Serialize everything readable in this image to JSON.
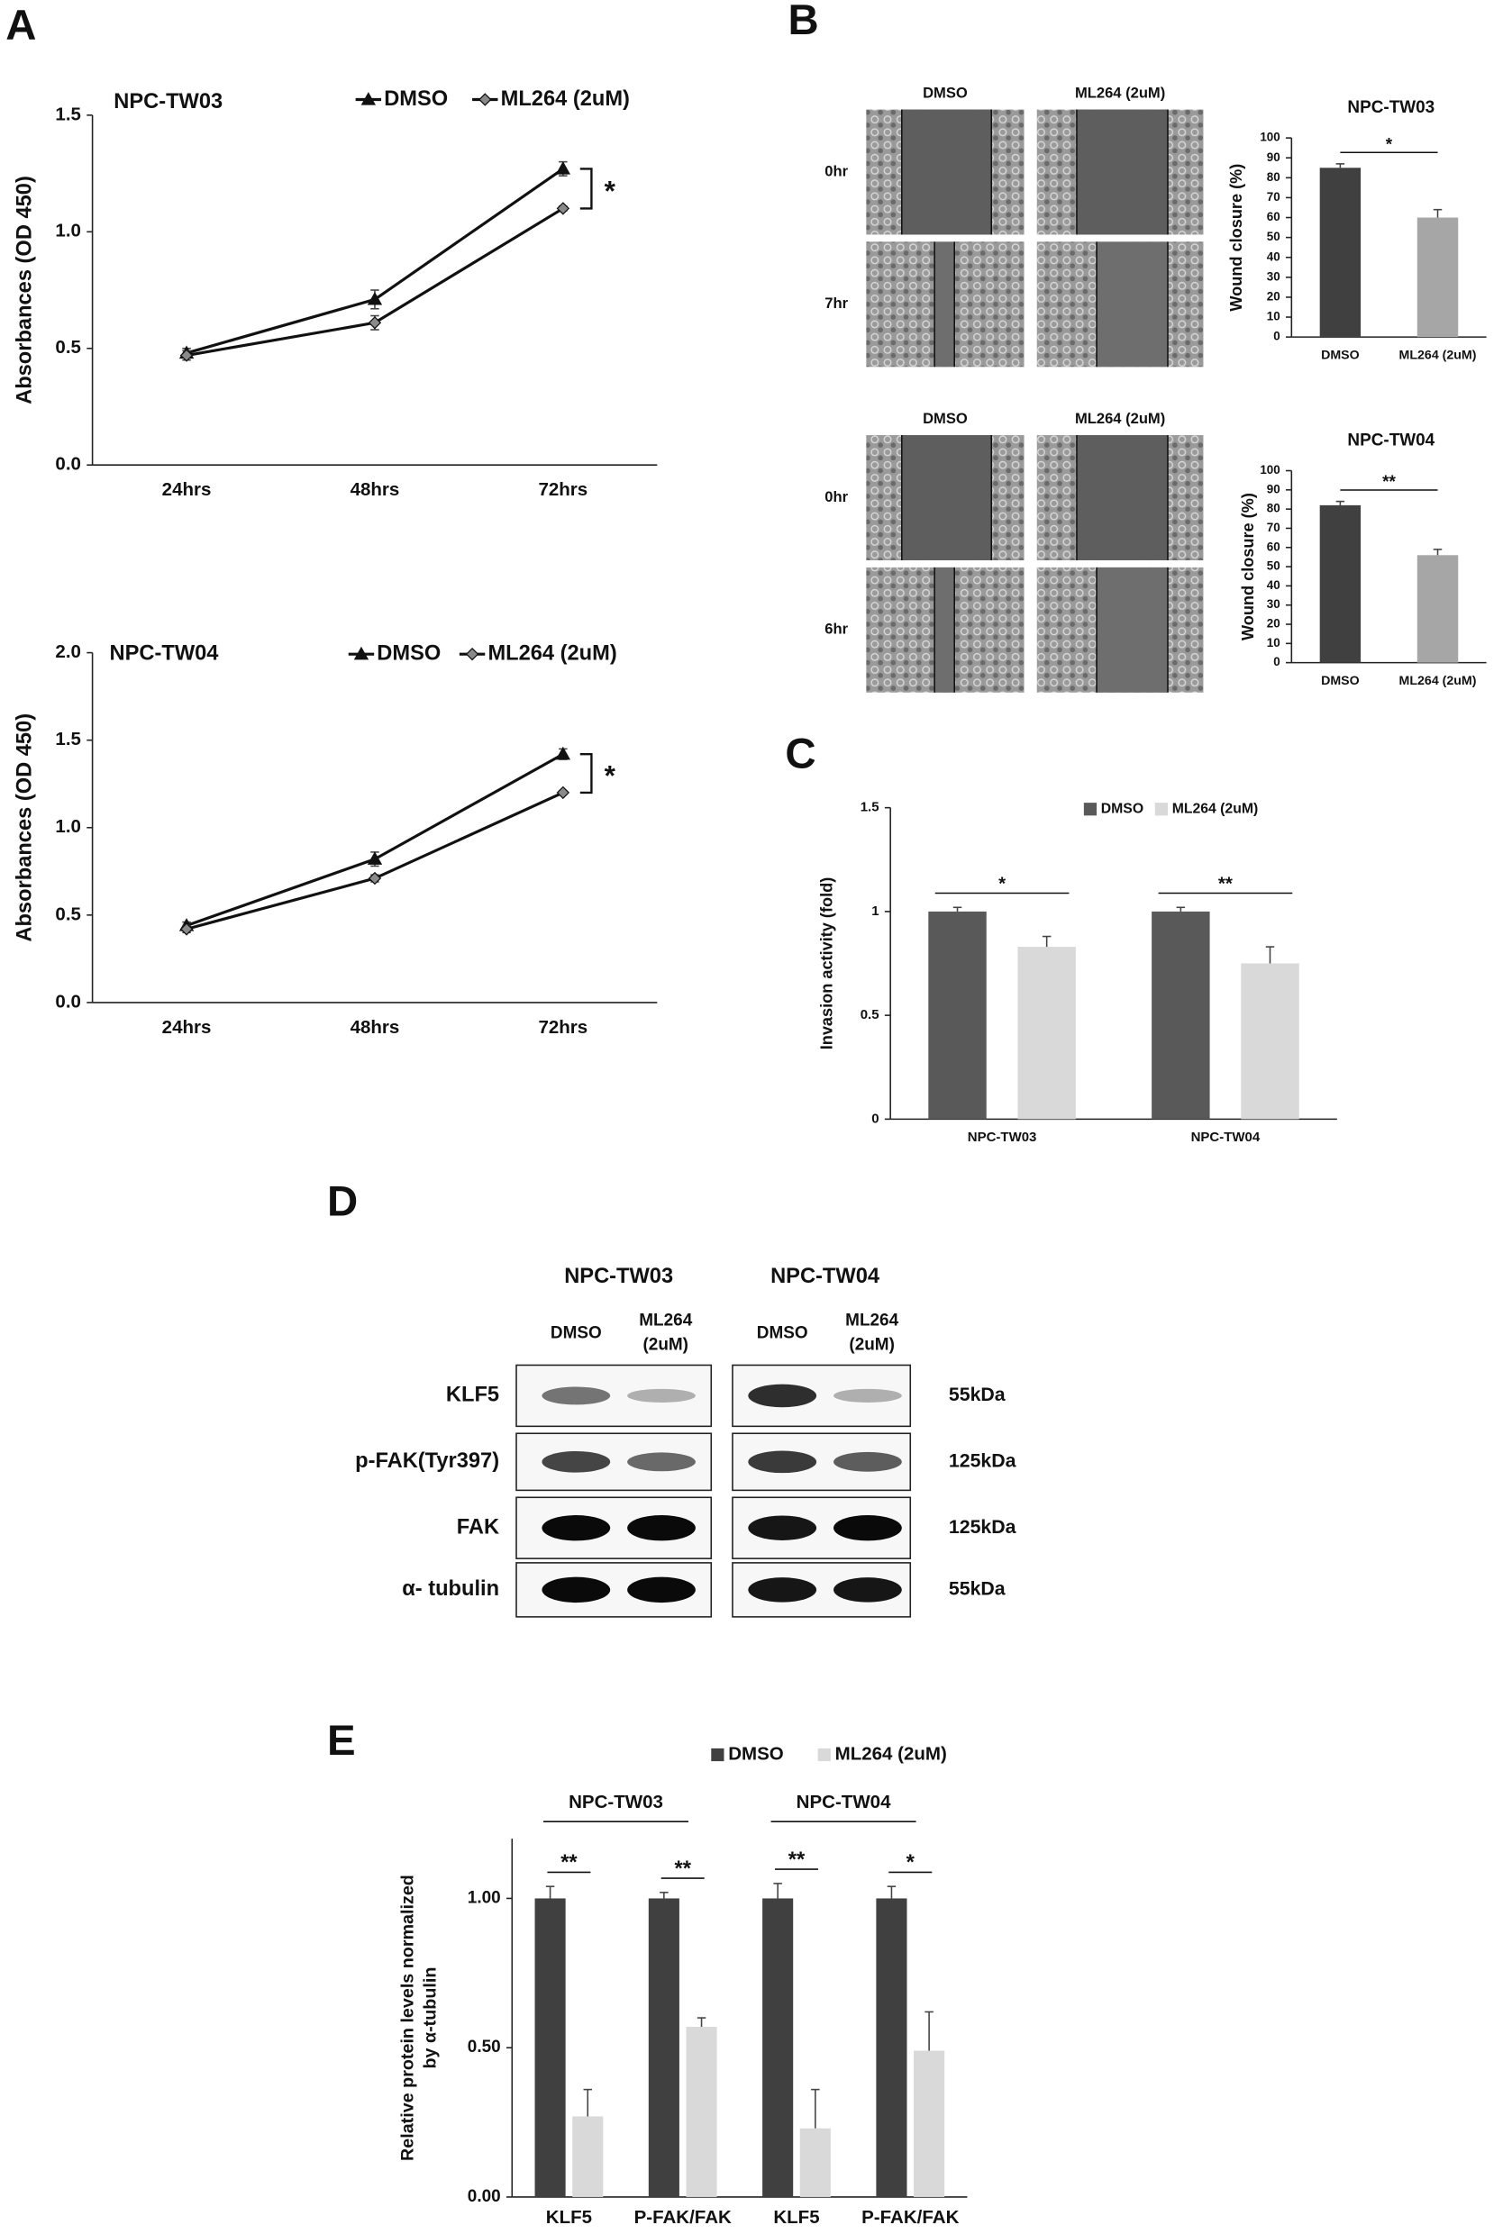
{
  "chart_data": [
    {
      "type": "line",
      "panel": "A",
      "title": "NPC-TW03",
      "y_label": "Absorbances (OD 450)",
      "categories": [
        "24hrs",
        "48hrs",
        "72hrs"
      ],
      "series": [
        {
          "name": "DMSO",
          "color": "#111111",
          "marker": "triangle",
          "marker_fill": "#111111",
          "values": [
            0.48,
            0.71,
            1.27
          ],
          "errors": [
            0.02,
            0.04,
            0.03
          ]
        },
        {
          "name": "ML264 (2uM)",
          "color": "#111111",
          "marker": "diamond",
          "marker_fill": "#8a8a8a",
          "values": [
            0.47,
            0.61,
            1.1
          ],
          "errors": [
            0.02,
            0.03,
            0.01
          ]
        }
      ],
      "ylim": [
        0,
        1.5
      ],
      "yticks": [
        {
          "value": 0,
          "label": "0.0"
        },
        {
          "value": 0.5,
          "label": "0.5"
        },
        {
          "value": 1,
          "label": "1.0"
        },
        {
          "value": 1.5,
          "label": "1.5"
        }
      ],
      "annotations": [
        "*"
      ]
    },
    {
      "type": "line",
      "title": "NPC-TW04",
      "y_label": "Absorbances (OD 450)",
      "categories": [
        "24hrs",
        "48hrs",
        "72hrs"
      ],
      "series": [
        {
          "name": "DMSO",
          "color": "#111111",
          "marker": "triangle",
          "marker_fill": "#111111",
          "values": [
            0.44,
            0.82,
            1.42
          ],
          "errors": [
            0.02,
            0.04,
            0.03
          ]
        },
        {
          "name": "ML264 (2uM)",
          "color": "#111111",
          "marker": "diamond",
          "marker_fill": "#8a8a8a",
          "values": [
            0.42,
            0.71,
            1.2
          ],
          "errors": [
            0.02,
            0.02,
            0.01
          ]
        }
      ],
      "ylim": [
        0,
        2
      ],
      "yticks": [
        {
          "value": 0,
          "label": "0.0"
        },
        {
          "value": 0.5,
          "label": "0.5"
        },
        {
          "value": 1,
          "label": "1.0"
        },
        {
          "value": 1.5,
          "label": "1.5"
        },
        {
          "value": 2,
          "label": "2.0"
        }
      ],
      "annotations": [
        "*"
      ]
    },
    {
      "type": "bar",
      "title": "NPC-TW03",
      "y_label": "Wound closure (%)",
      "categories": [
        "DMSO",
        "ML264 (2uM)"
      ],
      "values": [
        85,
        60
      ],
      "errors": [
        2,
        4
      ],
      "colors": [
        "#404040",
        "#a6a6a6"
      ],
      "ylim": [
        0,
        100
      ],
      "yticks": [
        0,
        10,
        20,
        30,
        40,
        50,
        60,
        70,
        80,
        90,
        100
      ],
      "annotations": [
        "*"
      ]
    },
    {
      "type": "bar",
      "title": "NPC-TW04",
      "y_label": "Wound closure (%)",
      "categories": [
        "DMSO",
        "ML264 (2uM)"
      ],
      "values": [
        82,
        56
      ],
      "errors": [
        2,
        3
      ],
      "colors": [
        "#404040",
        "#a6a6a6"
      ],
      "ylim": [
        0,
        100
      ],
      "yticks": [
        0,
        10,
        20,
        30,
        40,
        50,
        60,
        70,
        80,
        90,
        100
      ],
      "annotations": [
        "**"
      ]
    },
    {
      "type": "bar",
      "panel": "C",
      "y_label": "Invasion activity (fold)",
      "categories": [
        "NPC-TW03",
        "NPC-TW04"
      ],
      "series": [
        {
          "name": "DMSO",
          "color": "#595959",
          "values": [
            1,
            1
          ],
          "errors": [
            0.02,
            0.02
          ]
        },
        {
          "name": "ML264 (2uM)",
          "color": "#d9d9d9",
          "values": [
            0.83,
            0.75
          ],
          "errors": [
            0.05,
            0.08
          ]
        }
      ],
      "ylim": [
        0,
        1.5
      ],
      "yticks": [
        0,
        0.5,
        1,
        1.5
      ],
      "annotations": [
        "*",
        "**"
      ]
    },
    {
      "type": "bar",
      "panel": "E",
      "y_label": [
        "Relative protein levels normalized",
        "by α-tubulin"
      ],
      "groups": [
        "NPC-TW03",
        "NPC-TW04"
      ],
      "categories": [
        "KLF5",
        "P-FAK/FAK",
        "KLF5",
        "P-FAK/FAK"
      ],
      "series": [
        {
          "name": "DMSO",
          "color": "#404040",
          "values": [
            1,
            1,
            1,
            1
          ],
          "errors": [
            0.04,
            0.02,
            0.05,
            0.04
          ]
        },
        {
          "name": "ML264 (2uM)",
          "color": "#d9d9d9",
          "values": [
            0.27,
            0.57,
            0.23,
            0.49
          ],
          "errors": [
            0.09,
            0.03,
            0.13,
            0.13
          ]
        }
      ],
      "ylim": [
        0,
        1.2
      ],
      "yticks": [
        {
          "value": 0,
          "label": "0.00"
        },
        {
          "value": 0.5,
          "label": "0.50"
        },
        {
          "value": 1,
          "label": "1.00"
        }
      ],
      "annotations": [
        "**",
        "**",
        "**",
        "*"
      ]
    }
  ],
  "wound_images": {
    "panel": "B",
    "sets": [
      {
        "columns": [
          "DMSO",
          "ML264 (2uM)"
        ],
        "rows": [
          "0hr",
          "7hr"
        ]
      },
      {
        "columns": [
          "DMSO",
          "ML264 (2uM)"
        ],
        "rows": [
          "0hr",
          "6hr"
        ]
      }
    ]
  },
  "western_blot": {
    "panel": "D",
    "cell_lines": [
      {
        "name": "NPC-TW03",
        "lanes": [
          {
            "name": "DMSO"
          },
          {
            "name": "ML264",
            "sub": "(2uM)"
          }
        ]
      },
      {
        "name": "NPC-TW04",
        "lanes": [
          {
            "name": "DMSO"
          },
          {
            "name": "ML264",
            "sub": "(2uM)"
          }
        ]
      }
    ],
    "proteins": [
      {
        "name": "KLF5",
        "size": "55kDa"
      },
      {
        "name": "p-FAK(Tyr397)",
        "size": "125kDa"
      },
      {
        "name": "FAK",
        "size": "125kDa"
      },
      {
        "name": "α- tubulin",
        "size": "55kDa"
      }
    ]
  }
}
